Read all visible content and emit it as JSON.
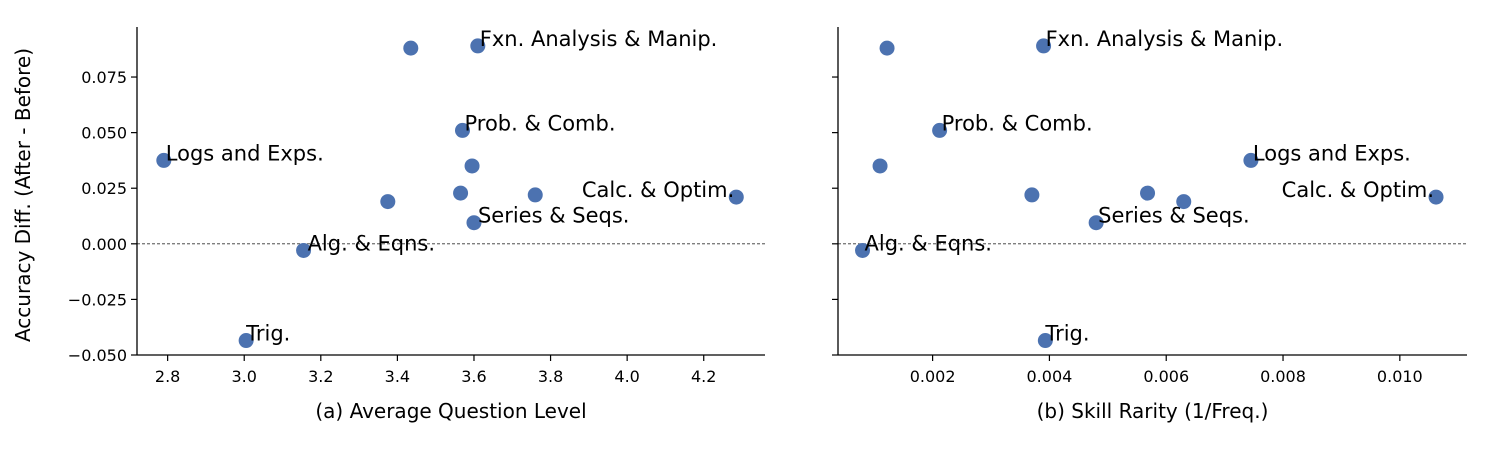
{
  "figure": {
    "ylabel": "Accuracy Diff. (After - Before)",
    "colors": {
      "marker": "#4c72b0",
      "axis": "#000000",
      "zero_line": "#333333"
    }
  },
  "chart_data": [
    {
      "type": "scatter",
      "xlabel": "(a) Average Question Level",
      "ylabel": "Accuracy Diff. (After - Before)",
      "xlim": [
        2.72,
        4.36
      ],
      "ylim": [
        -0.05,
        0.0975
      ],
      "xticks": [
        2.8,
        3.0,
        3.2,
        3.4,
        3.6,
        3.8,
        4.0,
        4.2
      ],
      "xtick_labels": [
        "2.8",
        "3.0",
        "3.2",
        "3.4",
        "3.6",
        "3.8",
        "4.0",
        "4.2"
      ],
      "yticks": [
        -0.05,
        -0.025,
        0.0,
        0.025,
        0.05,
        0.075
      ],
      "ytick_labels": [
        "−0.050",
        "−0.025",
        "0.000",
        "0.025",
        "0.050",
        "0.075"
      ],
      "zero_line": true,
      "points": [
        {
          "x": 2.79,
          "y": 0.0375,
          "label": "Logs and Exps."
        },
        {
          "x": 3.005,
          "y": -0.0435,
          "label": "Trig."
        },
        {
          "x": 3.155,
          "y": -0.003,
          "label": "Alg. & Eqns."
        },
        {
          "x": 3.375,
          "y": 0.019,
          "label": ""
        },
        {
          "x": 3.435,
          "y": 0.088,
          "label": ""
        },
        {
          "x": 3.565,
          "y": 0.0228,
          "label": ""
        },
        {
          "x": 3.57,
          "y": 0.051,
          "label": "Prob. & Comb."
        },
        {
          "x": 3.595,
          "y": 0.035,
          "label": ""
        },
        {
          "x": 3.6,
          "y": 0.0095,
          "label": "Series & Seqs."
        },
        {
          "x": 3.61,
          "y": 0.089,
          "label": "Fxn. Analysis & Manip."
        },
        {
          "x": 3.76,
          "y": 0.022,
          "label": ""
        },
        {
          "x": 4.285,
          "y": 0.021,
          "label": "Calc. & Optim."
        }
      ]
    },
    {
      "type": "scatter",
      "xlabel": "(b) Skill Rarity (1/Freq.)",
      "ylabel": "",
      "xlim": [
        0.00038,
        0.01115
      ],
      "ylim": [
        -0.05,
        0.0975
      ],
      "xticks": [
        0.002,
        0.004,
        0.006,
        0.008,
        0.01
      ],
      "xtick_labels": [
        "0.002",
        "0.004",
        "0.006",
        "0.008",
        "0.010"
      ],
      "yticks": [
        -0.05,
        -0.025,
        0.0,
        0.025,
        0.05,
        0.075
      ],
      "ytick_labels": [],
      "zero_line": true,
      "points": [
        {
          "x": 0.0008,
          "y": -0.003,
          "label": "Alg. & Eqns."
        },
        {
          "x": 0.0011,
          "y": 0.035,
          "label": ""
        },
        {
          "x": 0.00122,
          "y": 0.088,
          "label": ""
        },
        {
          "x": 0.00212,
          "y": 0.051,
          "label": "Prob. & Comb."
        },
        {
          "x": 0.0037,
          "y": 0.022,
          "label": ""
        },
        {
          "x": 0.0039,
          "y": 0.089,
          "label": "Fxn. Analysis & Manip."
        },
        {
          "x": 0.00393,
          "y": -0.0435,
          "label": "Trig."
        },
        {
          "x": 0.0048,
          "y": 0.0095,
          "label": "Series & Seqs."
        },
        {
          "x": 0.00568,
          "y": 0.0228,
          "label": ""
        },
        {
          "x": 0.0063,
          "y": 0.019,
          "label": ""
        },
        {
          "x": 0.00745,
          "y": 0.0375,
          "label": "Logs and Exps."
        },
        {
          "x": 0.01062,
          "y": 0.021,
          "label": "Calc. & Optim."
        }
      ]
    }
  ]
}
